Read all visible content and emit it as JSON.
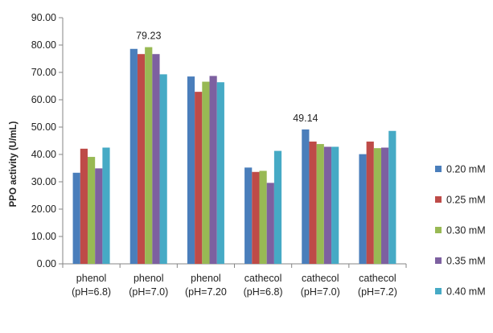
{
  "chart_data": {
    "type": "bar",
    "ylabel": "PPO activity (U/mL)",
    "ylim": [
      0,
      90
    ],
    "y_ticks": [
      "0.00",
      "10.00",
      "20.00",
      "30.00",
      "40.00",
      "50.00",
      "60.00",
      "70.00",
      "80.00",
      "90.00"
    ],
    "grid": false,
    "legend_position": "right",
    "categories": [
      [
        "phenol",
        "(pH=6.8)"
      ],
      [
        "phenol",
        "(pH=7.0)"
      ],
      [
        "phenol",
        "(pH=7.20"
      ],
      [
        "cathecol",
        "(pH=6.8)"
      ],
      [
        "cathecol",
        "(pH=7.0)"
      ],
      [
        "cathecol",
        "(pH=7.2)"
      ]
    ],
    "series": [
      {
        "name": "0.20 mM",
        "color": "#4a7ebb",
        "values": [
          33.3,
          78.6,
          68.5,
          35.2,
          49.14,
          40.1
        ]
      },
      {
        "name": "0.25 mM",
        "color": "#be4b48",
        "values": [
          42.1,
          76.7,
          62.9,
          33.6,
          44.7,
          44.7
        ]
      },
      {
        "name": "0.30 mM",
        "color": "#98b954",
        "values": [
          39.1,
          79.23,
          66.6,
          34.0,
          43.8,
          42.3
        ]
      },
      {
        "name": "0.35 mM",
        "color": "#7d60a0",
        "values": [
          34.9,
          76.7,
          68.7,
          29.6,
          42.8,
          42.5
        ]
      },
      {
        "name": "0.40 mM",
        "color": "#46aac5",
        "values": [
          42.5,
          69.3,
          66.4,
          41.3,
          42.8,
          48.6
        ]
      }
    ],
    "annotations": [
      {
        "text": "79.23",
        "category_index": 1,
        "series_index": 2
      },
      {
        "text": "49.14",
        "category_index": 4,
        "series_index": 0
      }
    ]
  }
}
